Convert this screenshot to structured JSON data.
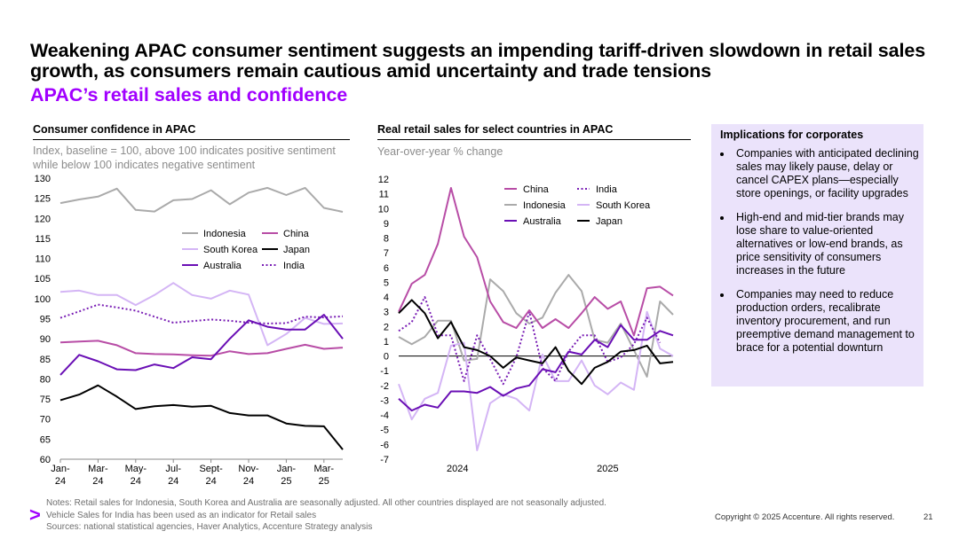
{
  "header": {
    "title": "Weakening APAC consumer sentiment suggests an impending tariff-driven slowdown in retail sales growth, as consumers remain cautious amid uncertainty and trade tensions",
    "subtitle": "APAC’s retail sales and confidence"
  },
  "colors": {
    "accent": "#a100ff",
    "china": "#b84da6",
    "india": "#7a1fb5",
    "indonesia": "#aaaaaa",
    "south_korea": "#d4b5f5",
    "japan": "#000000",
    "australia": "#6a0fb5",
    "panel_bg": "#ebe3fb"
  },
  "chart_data": [
    {
      "type": "line",
      "title": "Consumer confidence in APAC",
      "subtitle": "Index, baseline = 100, above 100 indicates positive sentiment while below 100 indicates negative sentiment",
      "ylim": [
        60,
        130
      ],
      "yticks": [
        "60",
        "65",
        "70",
        "75",
        "80",
        "85",
        "90",
        "95",
        "100",
        "105",
        "110",
        "115",
        "120",
        "125",
        "130"
      ],
      "xtick_labels": [
        [
          "Jan-",
          "24"
        ],
        [
          "Mar-",
          "24"
        ],
        [
          "May-",
          "24"
        ],
        [
          "Jul-",
          "24"
        ],
        [
          "Sept-",
          "24"
        ],
        [
          "Nov-",
          "24"
        ],
        [
          "Jan-",
          "25"
        ],
        [
          "Mar-",
          "25"
        ]
      ],
      "legend": [
        {
          "name": "Indonesia",
          "key": "indonesia",
          "dash": false
        },
        {
          "name": "China",
          "key": "china",
          "dash": false
        },
        {
          "name": "South Korea",
          "key": "south_korea",
          "dash": false
        },
        {
          "name": "Japan",
          "key": "japan",
          "dash": false
        },
        {
          "name": "Australia",
          "key": "australia",
          "dash": false
        },
        {
          "name": "India",
          "key": "india",
          "dash": true
        }
      ],
      "series": [
        {
          "name": "Indonesia",
          "key": "indonesia",
          "values": [
            123.8,
            124.7,
            125.4,
            127.4,
            122.1,
            121.7,
            124.5,
            124.8,
            127.0,
            123.5,
            126.4,
            127.6,
            125.8,
            127.6,
            122.6,
            121.6
          ]
        },
        {
          "name": "South Korea",
          "key": "south_korea",
          "values": [
            101.7,
            102.0,
            100.9,
            100.9,
            98.4,
            100.9,
            103.9,
            100.9,
            100.0,
            102.0,
            101.0,
            88.4,
            91.2,
            95.2,
            93.7,
            93.8
          ]
        },
        {
          "name": "India",
          "key": "india",
          "values": [
            95.2,
            96.8,
            98.5,
            97.8,
            97.0,
            95.5,
            94.0,
            94.4,
            94.8,
            94.5,
            94.0,
            93.8,
            93.9,
            95.5,
            95.3,
            95.6
          ]
        },
        {
          "name": "China",
          "key": "china",
          "values": [
            89.1,
            89.3,
            89.5,
            88.4,
            86.4,
            86.2,
            86.1,
            85.9,
            85.8,
            86.9,
            86.2,
            86.4,
            87.5,
            88.5,
            87.5,
            87.8
          ]
        },
        {
          "name": "Australia",
          "key": "australia",
          "values": [
            81.0,
            86.0,
            84.4,
            82.4,
            82.2,
            83.6,
            82.7,
            85.4,
            84.9,
            90.0,
            94.6,
            93.0,
            92.3,
            92.3,
            96.0,
            90.0
          ]
        },
        {
          "name": "Japan",
          "key": "japan",
          "values": [
            74.7,
            76.1,
            78.4,
            75.6,
            72.5,
            73.2,
            73.5,
            73.1,
            73.3,
            71.5,
            70.9,
            70.9,
            68.9,
            68.3,
            68.2,
            62.4
          ]
        }
      ]
    },
    {
      "type": "line",
      "title": "Real retail sales for select countries in APAC",
      "subtitle": "Year-over-year % change",
      "ylim": [
        -7,
        12
      ],
      "yticks": [
        "-7",
        "-6",
        "-5",
        "-4",
        "-3",
        "-2",
        "-1",
        "0",
        "1",
        "2",
        "3",
        "4",
        "5",
        "6",
        "7",
        "8",
        "9",
        "10",
        "11",
        "12"
      ],
      "xtick_labels": [
        "2024",
        "2025"
      ],
      "legend": [
        {
          "name": "China",
          "key": "china",
          "dash": false
        },
        {
          "name": "India",
          "key": "india",
          "dash": true
        },
        {
          "name": "Indonesia",
          "key": "indonesia",
          "dash": false
        },
        {
          "name": "South Korea",
          "key": "south_korea",
          "dash": false
        },
        {
          "name": "Australia",
          "key": "australia",
          "dash": false
        },
        {
          "name": "Japan",
          "key": "japan",
          "dash": false
        }
      ],
      "series": [
        {
          "name": "Indonesia",
          "key": "indonesia",
          "values": [
            1.3,
            0.8,
            1.3,
            2.4,
            2.4,
            -0.3,
            -0.2,
            5.2,
            4.4,
            2.9,
            2.2,
            2.6,
            4.3,
            5.5,
            4.4,
            1.1,
            0.9,
            2.2,
            0.4,
            -1.4,
            3.7,
            2.8
          ]
        },
        {
          "name": "South Korea",
          "key": "south_korea",
          "values": [
            -1.9,
            -4.3,
            -2.9,
            -2.5,
            0.7,
            0.9,
            -6.4,
            -3.2,
            -2.6,
            -2.9,
            -3.7,
            0.1,
            -1.7,
            -1.7,
            -0.3,
            -2.0,
            -2.6,
            -1.8,
            -2.3,
            3.0,
            0.5,
            0.0
          ]
        },
        {
          "name": "India",
          "key": "india",
          "values": [
            1.7,
            2.3,
            4.0,
            1.4,
            1.4,
            -1.7,
            1.4,
            -0.2,
            -1.9,
            -0.1,
            3.0,
            -0.8,
            -1.7,
            0.3,
            1.4,
            1.4,
            -0.4,
            -0.1,
            0.8,
            2.6,
            0.9
          ]
        },
        {
          "name": "China",
          "key": "china",
          "values": [
            3.0,
            4.9,
            5.5,
            7.6,
            11.4,
            8.1,
            6.7,
            3.7,
            2.3,
            1.9,
            3.1,
            1.9,
            2.5,
            1.9,
            2.9,
            4.0,
            3.2,
            3.7,
            1.4,
            4.6,
            4.7,
            4.1
          ]
        },
        {
          "name": "Australia",
          "key": "australia",
          "values": [
            -2.9,
            -3.7,
            -3.3,
            -3.5,
            -2.4,
            -2.4,
            -2.5,
            -2.1,
            -2.7,
            -2.2,
            -2.0,
            -0.9,
            -1.1,
            0.3,
            0.1,
            1.1,
            0.6,
            2.1,
            1.1,
            1.1,
            1.7,
            1.4
          ]
        },
        {
          "name": "Japan",
          "key": "japan",
          "values": [
            2.9,
            3.8,
            2.9,
            1.2,
            2.3,
            0.6,
            0.4,
            0.0,
            -0.8,
            -0.1,
            -0.3,
            -0.5,
            0.6,
            -1.0,
            -1.9,
            -0.8,
            -0.4,
            0.3,
            0.4,
            0.7,
            -0.5,
            -0.4
          ]
        }
      ]
    }
  ],
  "implications": {
    "title": "Implications for corporates",
    "items": [
      "Companies with anticipated declining sales may likely pause, delay or cancel CAPEX plans—especially store openings, or facility upgrades",
      "High-end and mid-tier brands may lose share to value-oriented alternatives or low-end brands, as price sensitivity of consumers increases in the future",
      "Companies may need to reduce production orders, recalibrate inventory procurement, and run preemptive demand management to brace for a potential downturn"
    ]
  },
  "footer": {
    "notes_1": "Notes: Retail sales for Indonesia, South Korea and Australia are seasonally adjusted. All other countries displayed are not seasonally adjusted.",
    "notes_2": "Vehicle Sales for India has been used as an indicator for Retail sales",
    "sources": "Sources: national statistical agencies, Haver Analytics, Accenture Strategy analysis",
    "logo": ">",
    "copyright": "Copyright © 2025 Accenture. All rights reserved.",
    "page_number": "21"
  }
}
